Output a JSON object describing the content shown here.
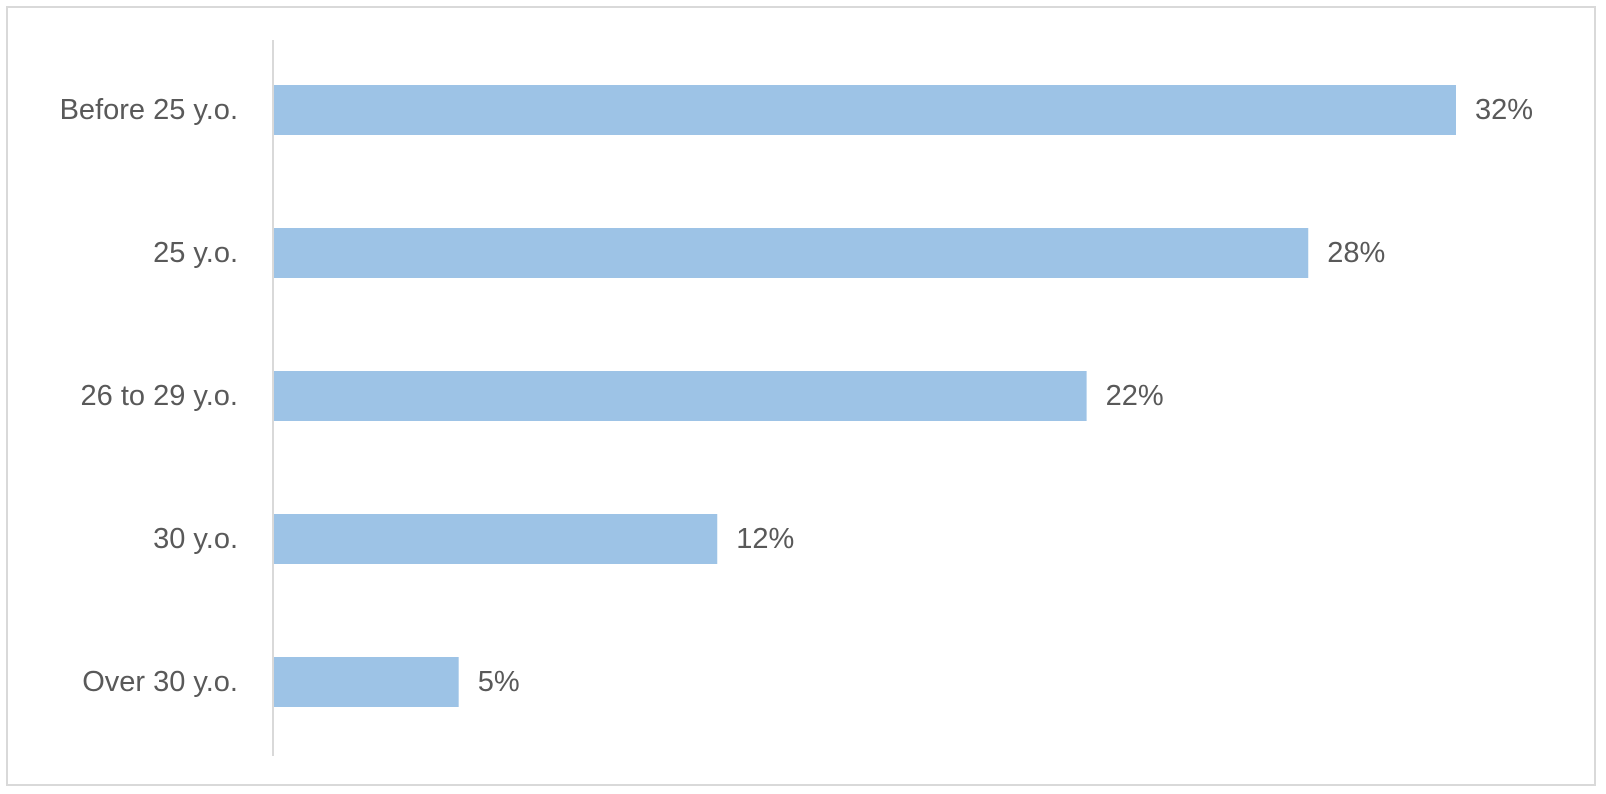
{
  "chart_data": {
    "type": "bar",
    "orientation": "horizontal",
    "categories": [
      "Before 25 y.o.",
      "25 y.o.",
      "26 to 29 y.o.",
      "30 y.o.",
      "Over 30 y.o."
    ],
    "values": [
      32,
      28,
      22,
      12,
      5
    ],
    "value_labels": [
      "32%",
      "28%",
      "22%",
      "12%",
      "5%"
    ],
    "unit": "%",
    "title": "",
    "xlabel": "",
    "ylabel": "",
    "xlim": [
      0,
      32
    ],
    "grid": false,
    "legend": "none",
    "colors": {
      "bar": "#9dc3e6",
      "axis": "#d9d9d9",
      "text": "#595959"
    }
  }
}
